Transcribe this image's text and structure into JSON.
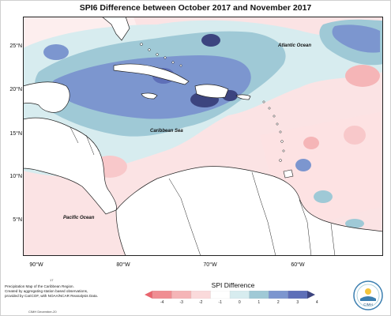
{
  "title": "SPI6 Difference between October 2017 and November 2017",
  "map": {
    "lat_labels": [
      {
        "label": "25°N"
      },
      {
        "label": "20°N"
      },
      {
        "label": "15°N"
      },
      {
        "label": "10°N"
      },
      {
        "label": "5°N"
      }
    ],
    "lon_labels": [
      {
        "label": "90°W"
      },
      {
        "label": "80°W"
      },
      {
        "label": "70°W"
      },
      {
        "label": "60°W"
      }
    ],
    "water_labels": {
      "atlantic": "Atlantic Ocean",
      "caribbean": "Caribbean Sea",
      "pacific": "Pacific Ocean"
    }
  },
  "legend": {
    "title": "SPI Difference",
    "ticks": [
      "-4",
      "-3",
      "-2",
      "-1",
      "0",
      "1",
      "2",
      "3",
      "4"
    ],
    "colors": [
      "#e8656e",
      "#f08d92",
      "#f5b5b7",
      "#fadadb",
      "#ffffff",
      "#d7ecef",
      "#9fc9d6",
      "#7c96cf",
      "#5e6fb8",
      "#3c447f"
    ]
  },
  "credit": {
    "tag": "17",
    "lines": [
      "Precipitation Map of the Caribbean Region.",
      "Created by aggregating station based observations,",
      "provided by CariCOF, with NOAA/NCAR Reanalysis Data."
    ],
    "date": "CIMH December-20"
  },
  "logo": {
    "text": "CIMH",
    "icon": "cimh-logo-icon"
  }
}
